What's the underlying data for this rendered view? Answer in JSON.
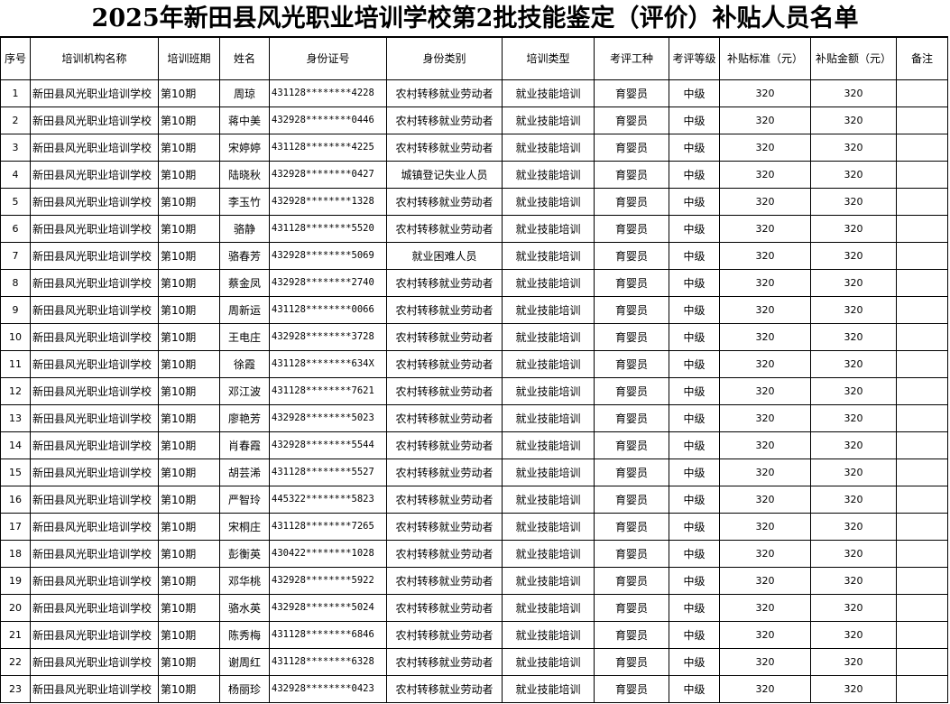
{
  "title": "2025年新田县风光职业培训学校第2批技能鉴定（评价）补贴人员名单",
  "columns": [
    "序号",
    "培训机构名称",
    "培训班期",
    "姓名",
    "身份证号",
    "身份类别",
    "培训类型",
    "考评工种",
    "考评等级",
    "补贴标准（元）",
    "补贴金额（元）",
    "备注"
  ],
  "rows": [
    [
      "1",
      "新田县风光职业培训学校",
      "第10期",
      "周琼",
      "431128********4228",
      "农村转移就业劳动者",
      "就业技能培训",
      "育婴员",
      "中级",
      "320",
      "320",
      ""
    ],
    [
      "2",
      "新田县风光职业培训学校",
      "第10期",
      "蒋中美",
      "432928********0446",
      "农村转移就业劳动者",
      "就业技能培训",
      "育婴员",
      "中级",
      "320",
      "320",
      ""
    ],
    [
      "3",
      "新田县风光职业培训学校",
      "第10期",
      "宋婷婷",
      "431128********4225",
      "农村转移就业劳动者",
      "就业技能培训",
      "育婴员",
      "中级",
      "320",
      "320",
      ""
    ],
    [
      "4",
      "新田县风光职业培训学校",
      "第10期",
      "陆晓秋",
      "432928********0427",
      "城镇登记失业人员",
      "就业技能培训",
      "育婴员",
      "中级",
      "320",
      "320",
      ""
    ],
    [
      "5",
      "新田县风光职业培训学校",
      "第10期",
      "李玉竹",
      "432928********1328",
      "农村转移就业劳动者",
      "就业技能培训",
      "育婴员",
      "中级",
      "320",
      "320",
      ""
    ],
    [
      "6",
      "新田县风光职业培训学校",
      "第10期",
      "骆静",
      "431128********5520",
      "农村转移就业劳动者",
      "就业技能培训",
      "育婴员",
      "中级",
      "320",
      "320",
      ""
    ],
    [
      "7",
      "新田县风光职业培训学校",
      "第10期",
      "骆春芳",
      "432928********5069",
      "就业困难人员",
      "就业技能培训",
      "育婴员",
      "中级",
      "320",
      "320",
      ""
    ],
    [
      "8",
      "新田县风光职业培训学校",
      "第10期",
      "蔡金凤",
      "432928********2740",
      "农村转移就业劳动者",
      "就业技能培训",
      "育婴员",
      "中级",
      "320",
      "320",
      ""
    ],
    [
      "9",
      "新田县风光职业培训学校",
      "第10期",
      "周新运",
      "431128********0066",
      "农村转移就业劳动者",
      "就业技能培训",
      "育婴员",
      "中级",
      "320",
      "320",
      ""
    ],
    [
      "10",
      "新田县风光职业培训学校",
      "第10期",
      "王电庄",
      "432928********3728",
      "农村转移就业劳动者",
      "就业技能培训",
      "育婴员",
      "中级",
      "320",
      "320",
      ""
    ],
    [
      "11",
      "新田县风光职业培训学校",
      "第10期",
      "徐霞",
      "431128********634X",
      "农村转移就业劳动者",
      "就业技能培训",
      "育婴员",
      "中级",
      "320",
      "320",
      ""
    ],
    [
      "12",
      "新田县风光职业培训学校",
      "第10期",
      "邓江波",
      "431128********7621",
      "农村转移就业劳动者",
      "就业技能培训",
      "育婴员",
      "中级",
      "320",
      "320",
      ""
    ],
    [
      "13",
      "新田县风光职业培训学校",
      "第10期",
      "廖艳芳",
      "432928********5023",
      "农村转移就业劳动者",
      "就业技能培训",
      "育婴员",
      "中级",
      "320",
      "320",
      ""
    ],
    [
      "14",
      "新田县风光职业培训学校",
      "第10期",
      "肖春霞",
      "432928********5544",
      "农村转移就业劳动者",
      "就业技能培训",
      "育婴员",
      "中级",
      "320",
      "320",
      ""
    ],
    [
      "15",
      "新田县风光职业培训学校",
      "第10期",
      "胡芸浠",
      "431128********5527",
      "农村转移就业劳动者",
      "就业技能培训",
      "育婴员",
      "中级",
      "320",
      "320",
      ""
    ],
    [
      "16",
      "新田县风光职业培训学校",
      "第10期",
      "严智玲",
      "445322********5823",
      "农村转移就业劳动者",
      "就业技能培训",
      "育婴员",
      "中级",
      "320",
      "320",
      ""
    ],
    [
      "17",
      "新田县风光职业培训学校",
      "第10期",
      "宋桐庄",
      "431128********7265",
      "农村转移就业劳动者",
      "就业技能培训",
      "育婴员",
      "中级",
      "320",
      "320",
      ""
    ],
    [
      "18",
      "新田县风光职业培训学校",
      "第10期",
      "彭衡英",
      "430422********1028",
      "农村转移就业劳动者",
      "就业技能培训",
      "育婴员",
      "中级",
      "320",
      "320",
      ""
    ],
    [
      "19",
      "新田县风光职业培训学校",
      "第10期",
      "邓华桃",
      "432928********5922",
      "农村转移就业劳动者",
      "就业技能培训",
      "育婴员",
      "中级",
      "320",
      "320",
      ""
    ],
    [
      "20",
      "新田县风光职业培训学校",
      "第10期",
      "骆水英",
      "432928********5024",
      "农村转移就业劳动者",
      "就业技能培训",
      "育婴员",
      "中级",
      "320",
      "320",
      ""
    ],
    [
      "21",
      "新田县风光职业培训学校",
      "第10期",
      "陈秀梅",
      "431128********6846",
      "农村转移就业劳动者",
      "就业技能培训",
      "育婴员",
      "中级",
      "320",
      "320",
      ""
    ],
    [
      "22",
      "新田县风光职业培训学校",
      "第10期",
      "谢周红",
      "431128********6328",
      "农村转移就业劳动者",
      "就业技能培训",
      "育婴员",
      "中级",
      "320",
      "320",
      ""
    ],
    [
      "23",
      "新田县风光职业培训学校",
      "第10期",
      "杨丽珍",
      "432928********0423",
      "农村转移就业劳动者",
      "就业技能培训",
      "育婴员",
      "中级",
      "320",
      "320",
      ""
    ]
  ]
}
